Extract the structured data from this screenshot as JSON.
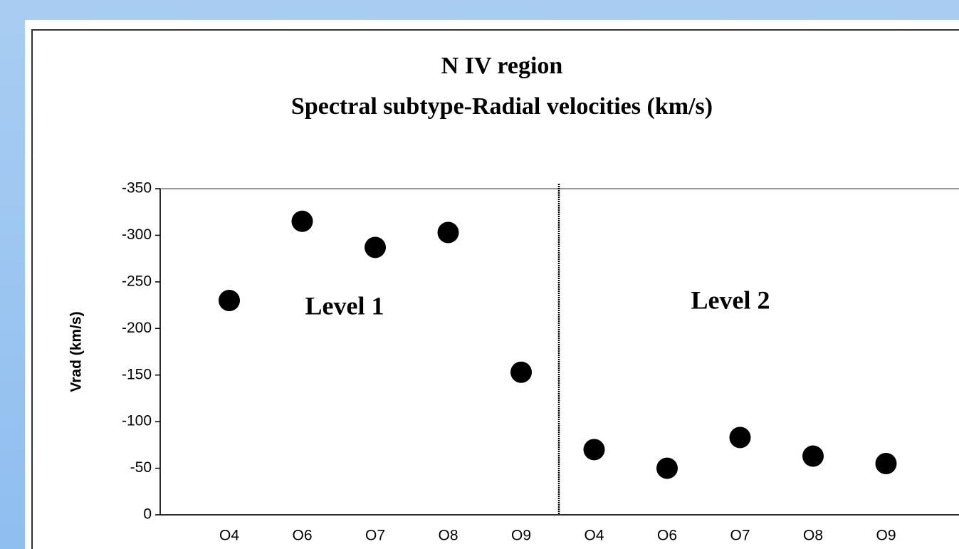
{
  "chart_data": {
    "type": "scatter",
    "title": "N IV region",
    "subtitle": "Spectral subtype-Radial velocities (km/s)",
    "y_label": "Vrad (km/s)",
    "categories": [
      "O4",
      "O6",
      "O7",
      "O8",
      "O9",
      "O4",
      "O6",
      "O7",
      "O8",
      "O9"
    ],
    "values": [
      -230,
      -315,
      -287,
      -303,
      -153,
      -70,
      -50,
      -83,
      -63,
      -55
    ],
    "color": "#000000",
    "ylim": [
      0,
      -350
    ],
    "yticks": [
      -350,
      -300,
      -250,
      -200,
      -150,
      -100,
      -50,
      0
    ],
    "annotations": [
      "Level 1",
      "Level 2"
    ]
  }
}
